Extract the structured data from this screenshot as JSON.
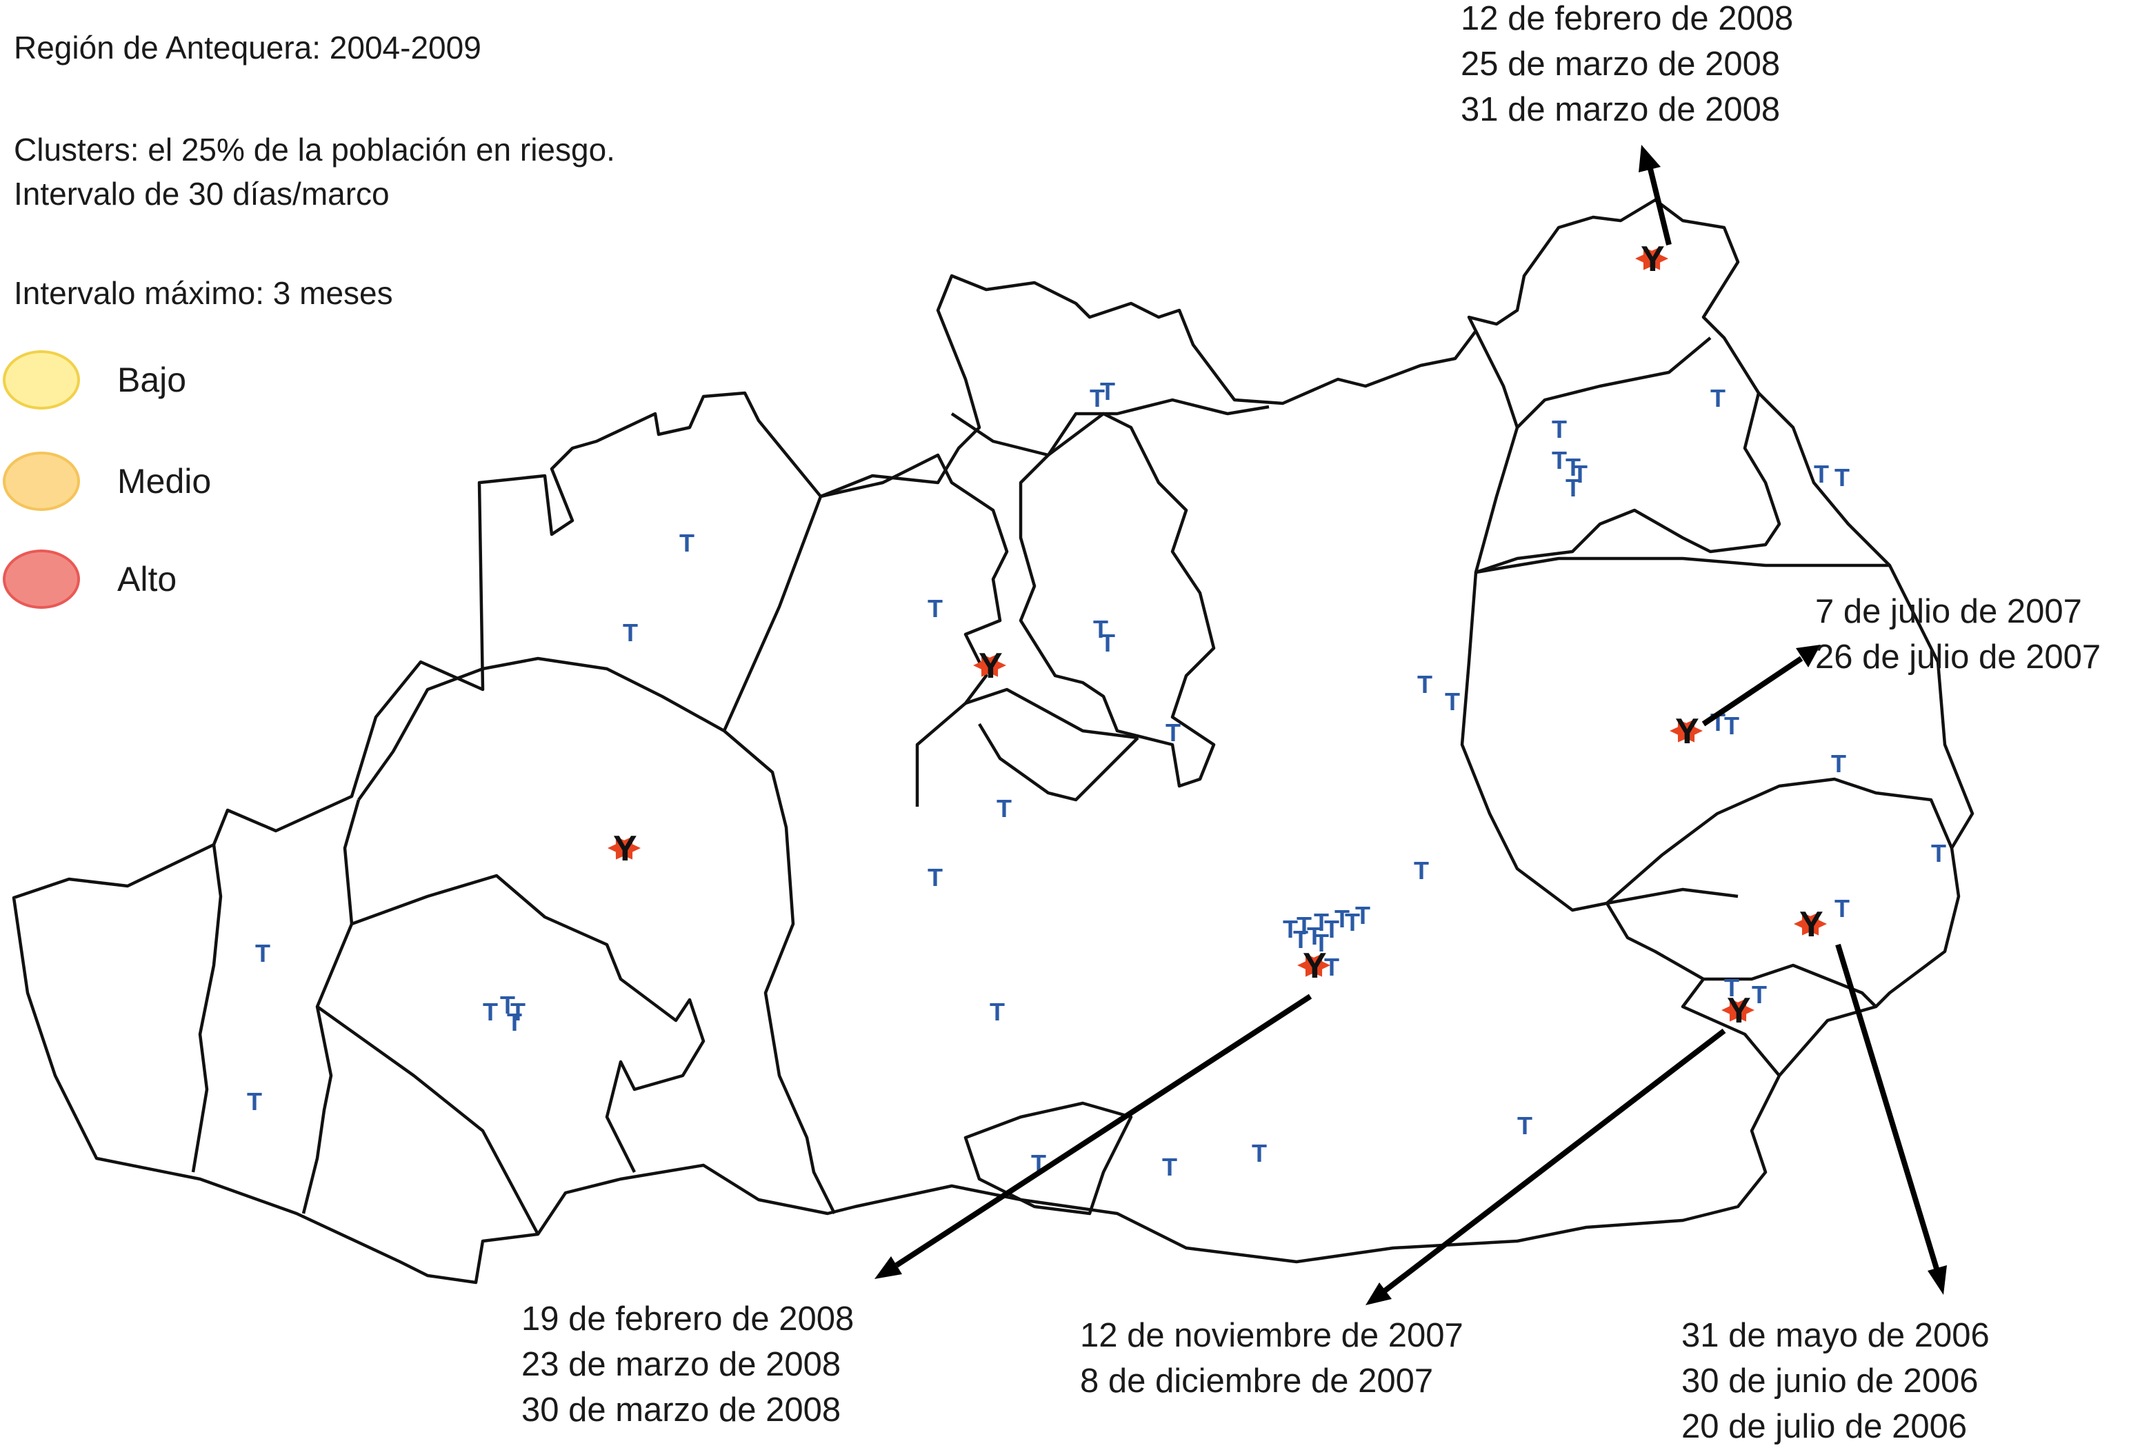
{
  "info": {
    "region": "Región de Antequera: 2004-2009",
    "clusters_line1": "Clusters: el 25% de la población en riesgo.",
    "clusters_line2": "Intervalo de 30 días/marco",
    "max_interval": "Intervalo máximo: 3 meses"
  },
  "legend": [
    {
      "label": "Bajo",
      "color": "#fff0a0",
      "border": "#f2d14a"
    },
    {
      "label": "Medio",
      "color": "#fcd98c",
      "border": "#f5c45a"
    },
    {
      "label": "Alto",
      "color": "#f28a84",
      "border": "#e85a56"
    }
  ],
  "callouts": {
    "north": [
      "12 de febrero de 2008",
      "25 de marzo de 2008",
      "31 de marzo de 2008"
    ],
    "east": [
      "7 de julio de 2007",
      "26 de julio de 2007"
    ],
    "south_center": [
      "19 de febrero de 2008",
      "23 de marzo de 2008",
      "30 de marzo de 2008"
    ],
    "south": [
      "12 de noviembre de 2007",
      "8 de diciembre de 2007"
    ],
    "southeast": [
      "31 de mayo de 2006",
      "30 de junio de 2006",
      "20 de julio de 2006"
    ]
  },
  "map": {
    "case_symbol": "T",
    "cluster_symbol": "Y",
    "case_color": "#2b5aa6",
    "cluster_color": "#e8431f"
  }
}
